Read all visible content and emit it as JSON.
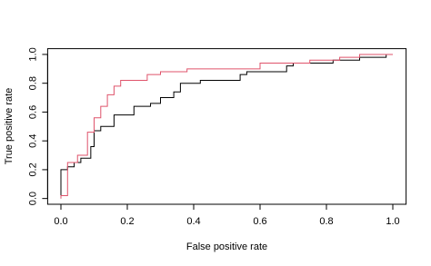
{
  "chart_data": {
    "type": "line",
    "xlabel": "False positive rate",
    "ylabel": "True positive rate",
    "xlim": [
      -0.04,
      1.04
    ],
    "ylim": [
      -0.04,
      1.04
    ],
    "xticks": [
      {
        "value": 0,
        "label": "0.0"
      },
      0.2,
      0.4,
      0.6,
      0.8,
      {
        "value": 1,
        "label": "1.0"
      }
    ],
    "yticks": [
      {
        "value": 0,
        "label": "0.0"
      },
      0.2,
      0.4,
      0.6,
      0.8,
      {
        "value": 1,
        "label": "1.0"
      }
    ],
    "series": [
      {
        "color": "#000000",
        "x": [
          0,
          0,
          0.02,
          0.02,
          0.04,
          0.04,
          0.06,
          0.06,
          0.09,
          0.09,
          0.1,
          0.1,
          0.12,
          0.12,
          0.16,
          0.16,
          0.22,
          0.22,
          0.27,
          0.27,
          0.3,
          0.3,
          0.34,
          0.34,
          0.36,
          0.36,
          0.42,
          0.42,
          0.54,
          0.54,
          0.56,
          0.56,
          0.68,
          0.68,
          0.7,
          0.7,
          0.82,
          0.82,
          0.9,
          0.9,
          0.98,
          0.98,
          1.0
        ],
        "values": [
          0,
          0.2,
          0.2,
          0.22,
          0.22,
          0.25,
          0.25,
          0.28,
          0.28,
          0.36,
          0.36,
          0.47,
          0.47,
          0.5,
          0.5,
          0.58,
          0.58,
          0.64,
          0.64,
          0.66,
          0.66,
          0.7,
          0.7,
          0.74,
          0.74,
          0.8,
          0.8,
          0.82,
          0.82,
          0.86,
          0.86,
          0.88,
          0.88,
          0.92,
          0.92,
          0.94,
          0.94,
          0.96,
          0.96,
          0.98,
          0.98,
          1.0,
          1.0
        ]
      },
      {
        "color": "#df536b",
        "x": [
          0,
          0,
          0.02,
          0.02,
          0.05,
          0.05,
          0.08,
          0.08,
          0.1,
          0.1,
          0.12,
          0.12,
          0.14,
          0.14,
          0.16,
          0.16,
          0.18,
          0.18,
          0.26,
          0.26,
          0.3,
          0.3,
          0.38,
          0.38,
          0.6,
          0.6,
          0.75,
          0.75,
          0.84,
          0.84,
          0.9,
          0.9,
          1.0
        ],
        "values": [
          0,
          0.02,
          0.02,
          0.25,
          0.25,
          0.3,
          0.3,
          0.46,
          0.46,
          0.56,
          0.56,
          0.64,
          0.64,
          0.72,
          0.72,
          0.78,
          0.78,
          0.82,
          0.82,
          0.86,
          0.86,
          0.88,
          0.88,
          0.9,
          0.9,
          0.94,
          0.94,
          0.96,
          0.96,
          0.98,
          0.98,
          1.0,
          1.0
        ]
      }
    ]
  }
}
